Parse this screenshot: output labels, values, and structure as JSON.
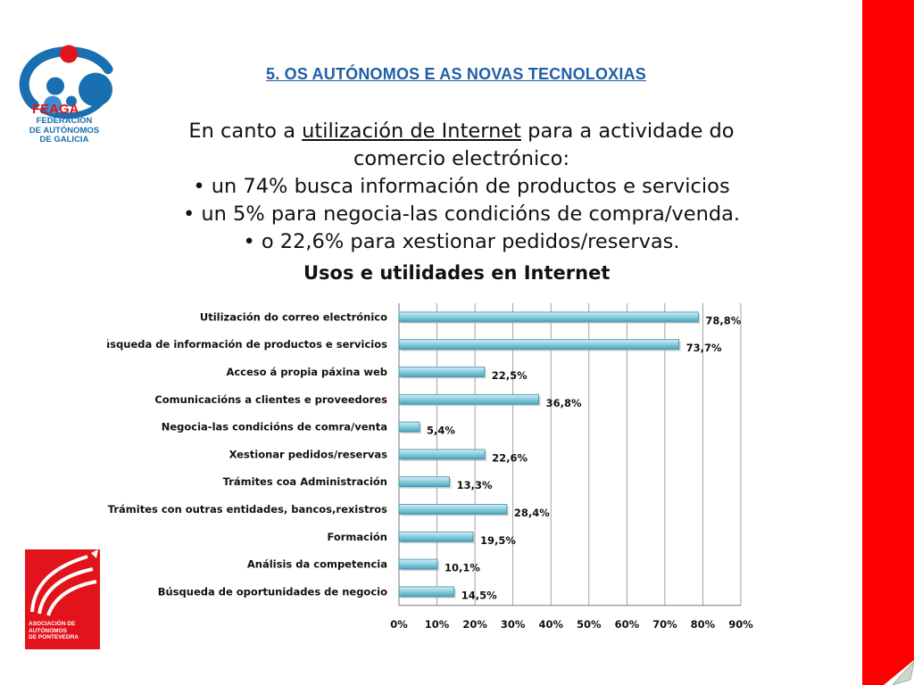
{
  "logos": {
    "feaga_name": "FEAGA",
    "feaga_sub": [
      "FEDERACIÓN",
      "DE AUTÓNOMOS",
      "DE GALICIA"
    ],
    "pontevedra_lines": [
      "ASOCIACIÓN DE",
      "AUTÓNOMOS",
      "DE PONTEVEDRA"
    ]
  },
  "heading": "5. OS AUTÓNOMOS E AS NOVAS TECNOLOXIAS",
  "intro": {
    "line1_before": "En canto a ",
    "line1_underlined": "utilización de Internet",
    "line1_after": " para a actividade do comercio electrónico:",
    "bullets": [
      "• un 74% busca información de productos e servicios",
      "• un 5% para negocia-las condicións de compra/venda.",
      "• o 22,6% para xestionar pedidos/reservas."
    ]
  },
  "colors": {
    "accent_red": "#ff0000",
    "title_blue": "#1f5fa8",
    "bar_fill": "#8ecfdf",
    "bar_stroke": "#3a8fa8"
  },
  "chart_data": {
    "type": "bar",
    "orientation": "horizontal",
    "title": "Usos e utilidades en Internet",
    "categories": [
      "Utilización do correo electrónico",
      "Búsqueda de información de productos e servicios",
      "Acceso á propia páxina web",
      "Comunicacións a clientes e proveedores",
      "Negocia-las condicións de comra/venta",
      "Xestionar pedidos/reservas",
      "Trámites coa Administración",
      "Trámites con outras entidades, bancos,rexistros",
      "Formación",
      "Análisis da competencia",
      "Búsqueda de oportunidades de negocio"
    ],
    "values": [
      78.8,
      73.7,
      22.5,
      36.8,
      5.4,
      22.6,
      13.3,
      28.4,
      19.5,
      10.1,
      14.5
    ],
    "value_labels": [
      "78,8%",
      "73,7%",
      "22,5%",
      "36,8%",
      "5,4%",
      "22,6%",
      "13,3%",
      "28,4%",
      "19,5%",
      "10,1%",
      "14,5%"
    ],
    "xlim": [
      0,
      90
    ],
    "xticks": [
      "0%",
      "10%",
      "20%",
      "30%",
      "40%",
      "50%",
      "60%",
      "70%",
      "80%",
      "90%"
    ],
    "grid": true,
    "xlabel": "",
    "ylabel": ""
  }
}
